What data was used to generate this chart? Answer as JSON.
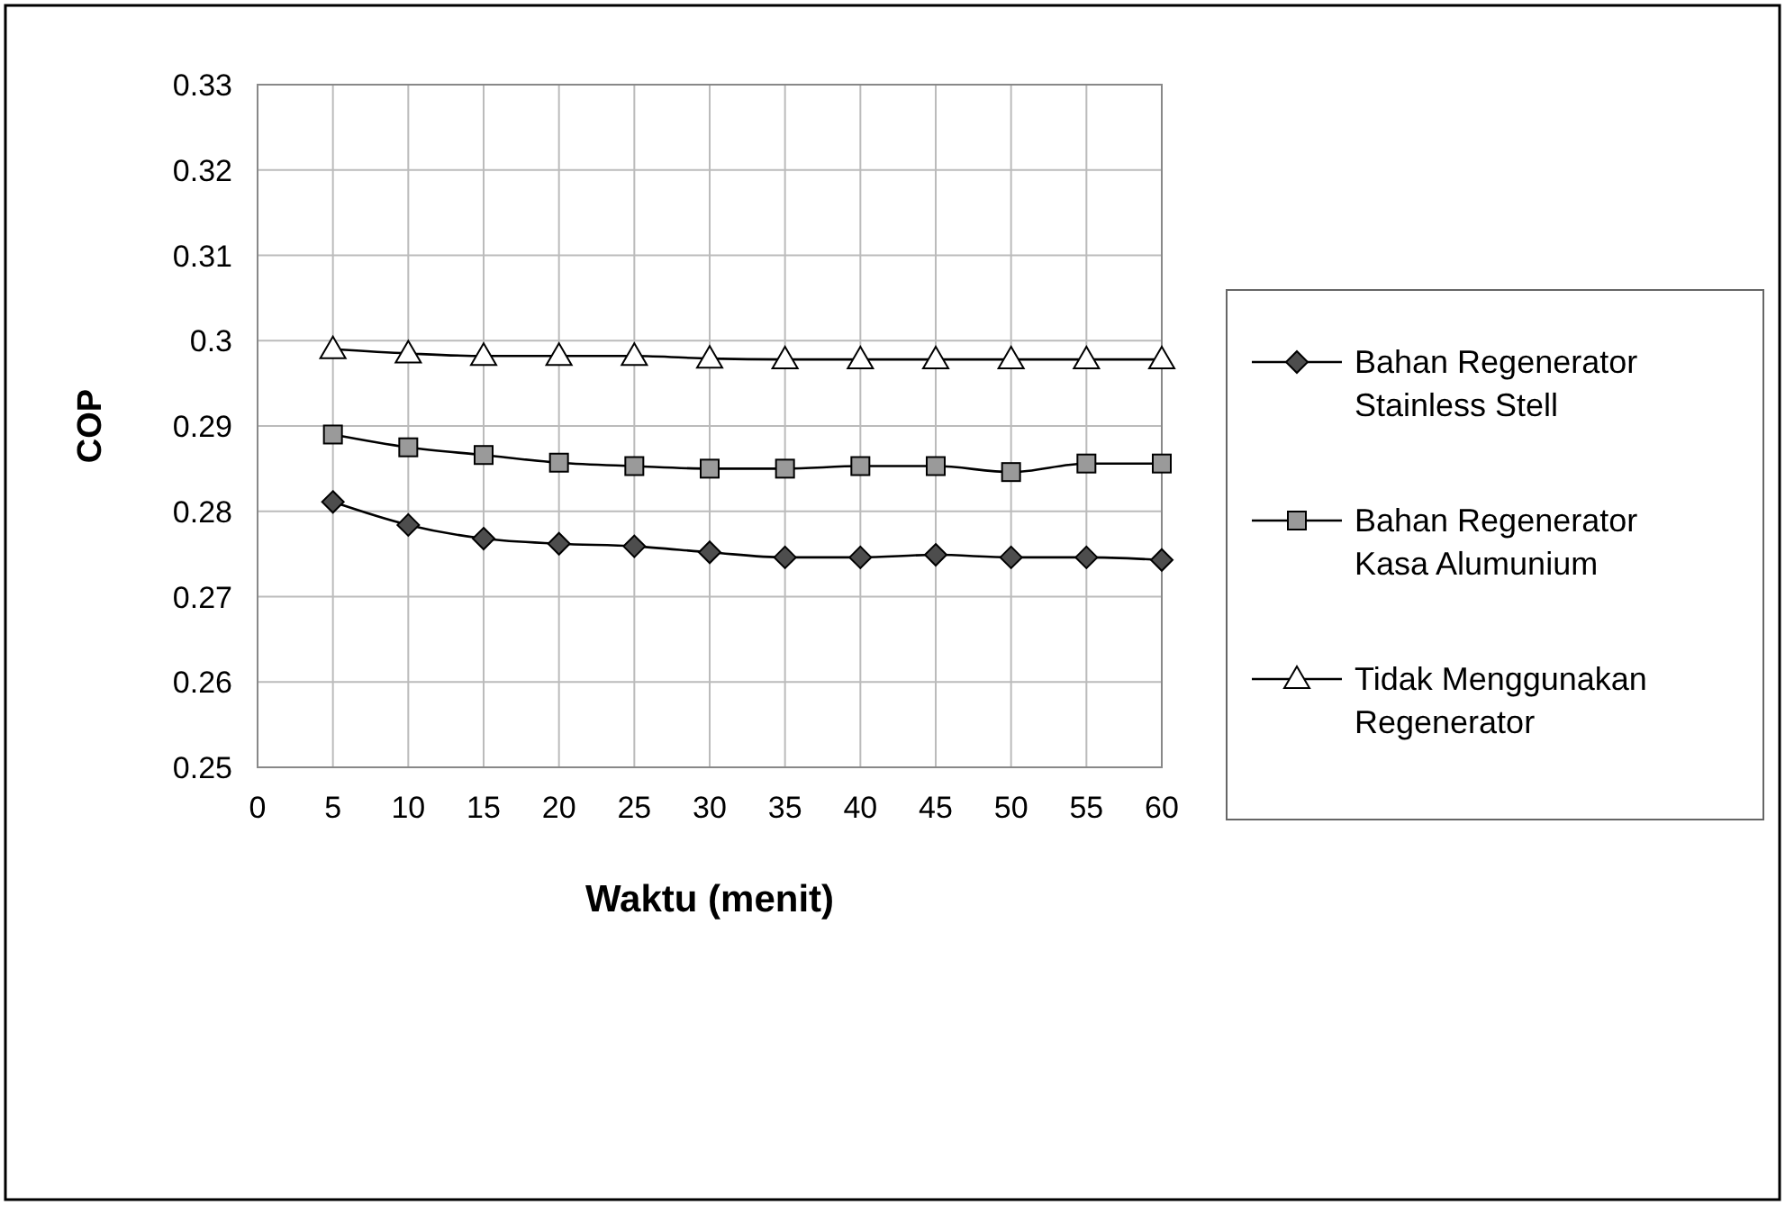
{
  "chart_data": {
    "type": "line",
    "xlabel": "Waktu (menit)",
    "ylabel": "COP",
    "x": [
      5,
      10,
      15,
      20,
      25,
      30,
      35,
      40,
      45,
      50,
      55,
      60
    ],
    "xlim": [
      0,
      60
    ],
    "xticks": [
      0,
      5,
      10,
      15,
      20,
      25,
      30,
      35,
      40,
      45,
      50,
      55,
      60
    ],
    "ylim": [
      0.25,
      0.33
    ],
    "yticks": [
      0.25,
      0.26,
      0.27,
      0.28,
      0.29,
      0.3,
      0.31,
      0.32,
      0.33
    ],
    "grid": true,
    "legend": "right",
    "line_style": "solid",
    "series": [
      {
        "name": "Bahan Regenerator Stainless Stell",
        "color": "#4d4d4d",
        "marker": "diamond",
        "values": [
          0.2811,
          0.2784,
          0.2768,
          0.2762,
          0.2759,
          0.2752,
          0.2746,
          0.2746,
          0.2749,
          0.2746,
          0.2746,
          0.2743
        ]
      },
      {
        "name": "Bahan Regenerator Kasa Alumunium",
        "color": "#9a9a9a",
        "marker": "square",
        "values": [
          0.289,
          0.2875,
          0.2866,
          0.2857,
          0.2853,
          0.285,
          0.285,
          0.2853,
          0.2853,
          0.2846,
          0.2856,
          0.2856
        ]
      },
      {
        "name": "Tidak Menggunakan Regenerator",
        "color": "#ffffff",
        "marker": "triangle",
        "values": [
          0.299,
          0.2985,
          0.2982,
          0.2982,
          0.2982,
          0.2979,
          0.2978,
          0.2978,
          0.2978,
          0.2978,
          0.2978,
          0.2978
        ]
      }
    ]
  }
}
